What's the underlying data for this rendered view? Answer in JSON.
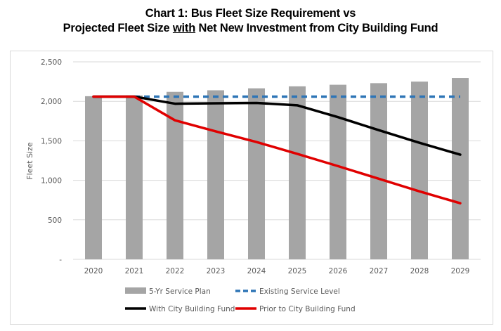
{
  "title": {
    "line1": "Chart 1:  Bus Fleet Size Requirement vs",
    "line2_pre": "Projected Fleet Size ",
    "line2_underlined": "with",
    "line2_post": " Net New Investment from City Building Fund"
  },
  "chart_data": {
    "type": "bar",
    "title": "Chart 1: Bus Fleet Size Requirement vs Projected Fleet Size with Net New Investment from City Building Fund",
    "xlabel": "",
    "ylabel": "Fleet Size",
    "ylim": [
      0,
      2500
    ],
    "yticks": [
      0,
      500,
      1000,
      1500,
      2000,
      2500
    ],
    "ytick_labels": [
      "-",
      "500",
      "1,000",
      "1,500",
      "2,000",
      "2,500"
    ],
    "grid": true,
    "legend_position": "bottom",
    "categories": [
      "2020",
      "2021",
      "2022",
      "2023",
      "2024",
      "2025",
      "2026",
      "2027",
      "2028",
      "2029"
    ],
    "series": [
      {
        "name": "5-Yr Service Plan",
        "type": "bar",
        "color": "#a5a5a5",
        "values": [
          2065,
          2075,
          2120,
          2140,
          2165,
          2190,
          2210,
          2230,
          2250,
          2295
        ]
      },
      {
        "name": "Existing Service Level",
        "type": "line",
        "style": "dashed",
        "color": "#2e75b6",
        "values": [
          null,
          2060,
          2060,
          2060,
          2060,
          2060,
          2060,
          2060,
          2060,
          2060
        ]
      },
      {
        "name": "With City Building Fund",
        "type": "line",
        "style": "solid",
        "color": "#000000",
        "values": [
          2060,
          2060,
          1970,
          1975,
          1980,
          1950,
          1800,
          1635,
          1475,
          1325
        ]
      },
      {
        "name": "Prior to City Building Fund",
        "type": "line",
        "style": "solid",
        "color": "#e00000",
        "values": [
          2060,
          2060,
          1760,
          1620,
          1485,
          1335,
          1180,
          1020,
          860,
          710
        ]
      }
    ]
  }
}
